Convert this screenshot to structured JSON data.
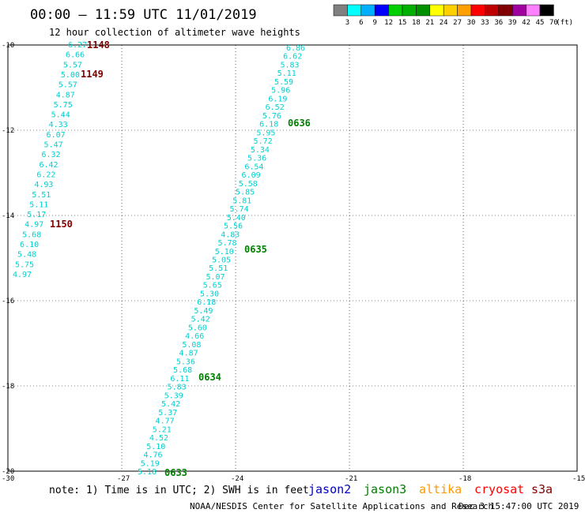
{
  "title": "00:00 – 11:59 UTC 11/01/2019",
  "subtitle": "12 hour collection of altimeter wave heights",
  "color_scale": {
    "unit": "(ft)",
    "labels": [
      "3",
      "6",
      "9",
      "12",
      "15",
      "18",
      "21",
      "24",
      "27",
      "30",
      "33",
      "36",
      "39",
      "42",
      "45",
      "70"
    ],
    "colors": [
      "#808080",
      "#00ffff",
      "#00b0ff",
      "#0000ff",
      "#00d000",
      "#00b000",
      "#009000",
      "#ffff00",
      "#ffd000",
      "#ffa000",
      "#ff0000",
      "#c00000",
      "#800000",
      "#a000a0",
      "#ff80ff",
      "#000000"
    ]
  },
  "axes": {
    "lat_labels": [
      "-10",
      "-12",
      "-14",
      "-16",
      "-18",
      "-20"
    ],
    "lon_labels": [
      "-30",
      "-27",
      "-24",
      "-21",
      "-18",
      "-15"
    ]
  },
  "time_labels": [
    {
      "text": "1148",
      "color": "#800000"
    },
    {
      "text": "1149",
      "color": "#800000"
    },
    {
      "text": "1150",
      "color": "#800000"
    },
    {
      "text": "0636",
      "color": "#008000"
    },
    {
      "text": "0635",
      "color": "#008000"
    },
    {
      "text": "0634",
      "color": "#008000"
    },
    {
      "text": "0633",
      "color": "#008000"
    }
  ],
  "track_west": [
    "6.27",
    "6.66",
    "5.57",
    "5.00",
    "5.57",
    "4.87",
    "5.75",
    "5.44",
    "4.33",
    "6.07",
    "5.47",
    "6.32",
    "6.42",
    "6.22",
    "4.93",
    "5.51",
    "5.11",
    "5.17",
    "4.97",
    "5.68",
    "6.10",
    "5.48",
    "5.75",
    "4.97"
  ],
  "track_east": [
    "6.86",
    "6.62",
    "5.83",
    "5.11",
    "5.59",
    "5.96",
    "6.19",
    "6.52",
    "5.76",
    "6.18",
    "5.95",
    "5.72",
    "5.34",
    "5.36",
    "6.54",
    "6.09",
    "5.58",
    "5.85",
    "5.81",
    "5.74",
    "5.40",
    "5.56",
    "4.83",
    "5.78",
    "5.10",
    "5.05",
    "5.51",
    "5.07",
    "5.65",
    "5.30",
    "6.18",
    "5.49",
    "5.42",
    "5.60",
    "4.66",
    "5.08",
    "4.87",
    "5.36",
    "5.68",
    "6.11",
    "5.83",
    "5.39",
    "5.42",
    "5.37",
    "4.77",
    "5.21",
    "4.52",
    "5.10",
    "4.76",
    "5.19",
    "5.18"
  ],
  "note": "note: 1) Time is in UTC; 2) SWH is in feet",
  "satellites": [
    {
      "name": "jason2",
      "color": "#0000c0"
    },
    {
      "name": "jason3",
      "color": "#008000"
    },
    {
      "name": "altika",
      "color": "#ff9900"
    },
    {
      "name": "cryosat",
      "color": "#ff0000"
    },
    {
      "name": "s3a",
      "color": "#800000"
    }
  ],
  "credit": "NOAA/NESDIS Center for Satellite Applications and Research",
  "generated": "Dec  3 15:47:00 UTC 2019"
}
